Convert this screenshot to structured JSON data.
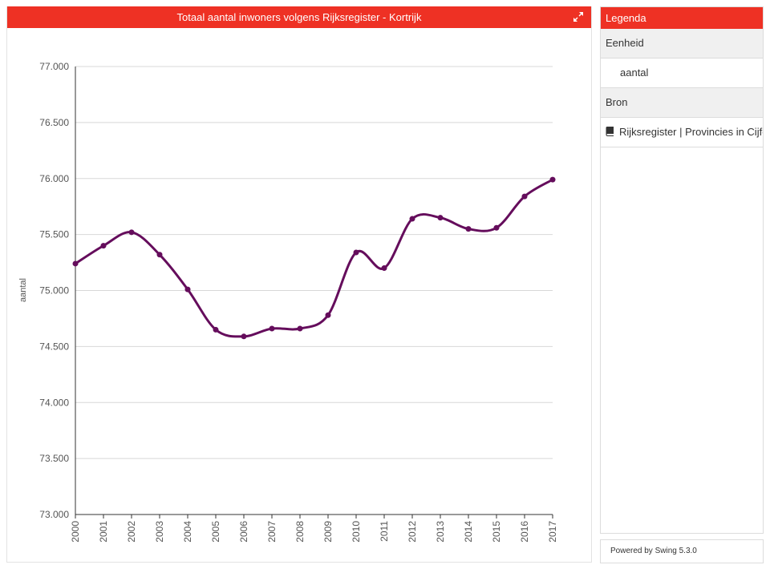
{
  "chart_header": {
    "title": "Totaal aantal inwoners volgens Rijksregister - Kortrijk"
  },
  "legend": {
    "title": "Legenda",
    "unit_heading": "Eenheid",
    "unit_value": "aantal",
    "source_heading": "Bron",
    "source_value": "Rijksregister | Provincies in Cijfers"
  },
  "footer": {
    "powered_by": "Powered by Swing 5.3.0"
  },
  "icons": {
    "expand": "expand-icon",
    "source": "book-icon"
  },
  "colors": {
    "accent": "#ee3124",
    "series": "#650d5c",
    "grid": "#d8d8d8"
  },
  "chart_data": {
    "type": "line",
    "title": "Totaal aantal inwoners volgens Rijksregister - Kortrijk",
    "xlabel": "",
    "ylabel": "aantal",
    "categories": [
      "2000",
      "2001",
      "2002",
      "2003",
      "2004",
      "2005",
      "2006",
      "2007",
      "2008",
      "2009",
      "2010",
      "2011",
      "2012",
      "2013",
      "2014",
      "2015",
      "2016",
      "2017"
    ],
    "series": [
      {
        "values": [
          75240,
          75400,
          75520,
          75320,
          75010,
          74650,
          74590,
          74660,
          74660,
          74780,
          75340,
          75200,
          75640,
          75650,
          75550,
          75560,
          75840,
          75990
        ]
      }
    ],
    "ylim": [
      73000,
      77000
    ],
    "yticks": [
      73000,
      73500,
      74000,
      74500,
      75000,
      75500,
      76000,
      76500,
      77000
    ],
    "ytick_labels": [
      "73.000",
      "73.500",
      "74.000",
      "74.500",
      "75.000",
      "75.500",
      "76.000",
      "76.500",
      "77.000"
    ],
    "grid": true,
    "legend": "none"
  }
}
